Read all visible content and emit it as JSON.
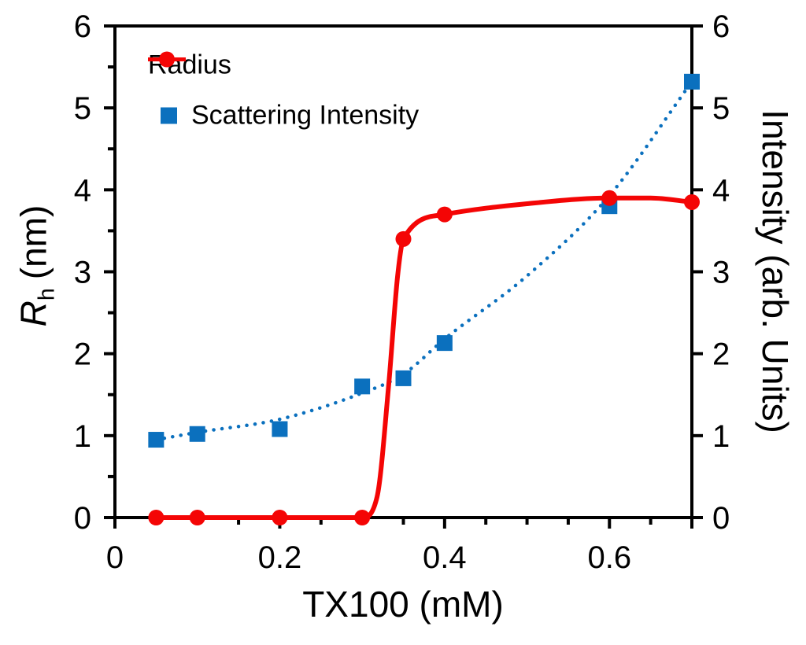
{
  "chart_data": {
    "type": "line",
    "title": "",
    "background": "#FFFFFF",
    "grid": false,
    "x_axis": {
      "title": "TX100 (mM)",
      "range": [
        0,
        0.7
      ],
      "major_ticks": [
        0,
        0.2,
        0.4,
        0.6
      ],
      "major_tick_labels": [
        "0",
        "0.2",
        "0.4",
        "0.6"
      ],
      "minor_ticks": [
        0.05,
        0.1,
        0.15,
        0.25,
        0.3,
        0.35,
        0.45,
        0.5,
        0.55,
        0.65
      ],
      "edge_ticks": [
        0.7
      ]
    },
    "y_axis_left": {
      "title_symbol": "R",
      "title_subscript": "h",
      "title_units": "(nm)",
      "range": [
        0,
        6
      ],
      "major_ticks": [
        0,
        1,
        2,
        3,
        4,
        5,
        6
      ],
      "major_tick_labels": [
        "0",
        "1",
        "2",
        "3",
        "4",
        "5",
        "6"
      ],
      "minor_ticks": [
        0.5,
        1.5,
        2.5,
        3.5,
        4.5,
        5.5
      ]
    },
    "y_axis_right": {
      "title": "Intensity (arb. Units)",
      "range": [
        0,
        6
      ],
      "major_ticks": [
        0,
        1,
        2,
        3,
        4,
        5,
        6
      ],
      "major_tick_labels": [
        "0",
        "1",
        "2",
        "3",
        "4",
        "5",
        "6"
      ],
      "minor_ticks": []
    },
    "legend": {
      "position": "top-left-inside"
    },
    "series": [
      {
        "name": "Radius",
        "axis": "left",
        "color": "#F40505",
        "marker": "circle",
        "marker_size": 20,
        "line_style": "solid",
        "line_width": 6,
        "x": [
          0.05,
          0.1,
          0.2,
          0.3,
          0.35,
          0.4,
          0.6,
          0.7
        ],
        "y": [
          0,
          0,
          0,
          0,
          3.4,
          3.7,
          3.9,
          3.85
        ],
        "smooth_curve": [
          [
            0.05,
            0
          ],
          [
            0.1,
            0
          ],
          [
            0.2,
            0
          ],
          [
            0.3,
            0
          ],
          [
            0.318,
            0.25
          ],
          [
            0.332,
            1.6
          ],
          [
            0.343,
            2.95
          ],
          [
            0.35,
            3.4
          ],
          [
            0.4,
            3.7
          ],
          [
            0.5,
            3.83
          ],
          [
            0.6,
            3.9
          ],
          [
            0.65,
            3.9
          ],
          [
            0.7,
            3.85
          ]
        ]
      },
      {
        "name": "Scattering Intensity",
        "axis": "right",
        "color": "#0B70BE",
        "marker": "square",
        "marker_size": 20,
        "line_style": "dotted",
        "line_width": 4.5,
        "x": [
          0.05,
          0.1,
          0.2,
          0.3,
          0.35,
          0.4,
          0.6,
          0.7
        ],
        "y": [
          0.95,
          1.02,
          1.08,
          1.6,
          1.7,
          2.13,
          3.8,
          5.32
        ],
        "smooth_curve": [
          [
            0.05,
            0.95
          ],
          [
            0.1,
            1.04
          ],
          [
            0.2,
            1.2
          ],
          [
            0.3,
            1.52
          ],
          [
            0.35,
            1.75
          ],
          [
            0.4,
            2.18
          ],
          [
            0.5,
            2.95
          ],
          [
            0.6,
            3.93
          ],
          [
            0.7,
            5.32
          ]
        ]
      }
    ]
  },
  "colors": {
    "axis": "#000000",
    "text": "#000000",
    "background": "#FFFFFF"
  }
}
